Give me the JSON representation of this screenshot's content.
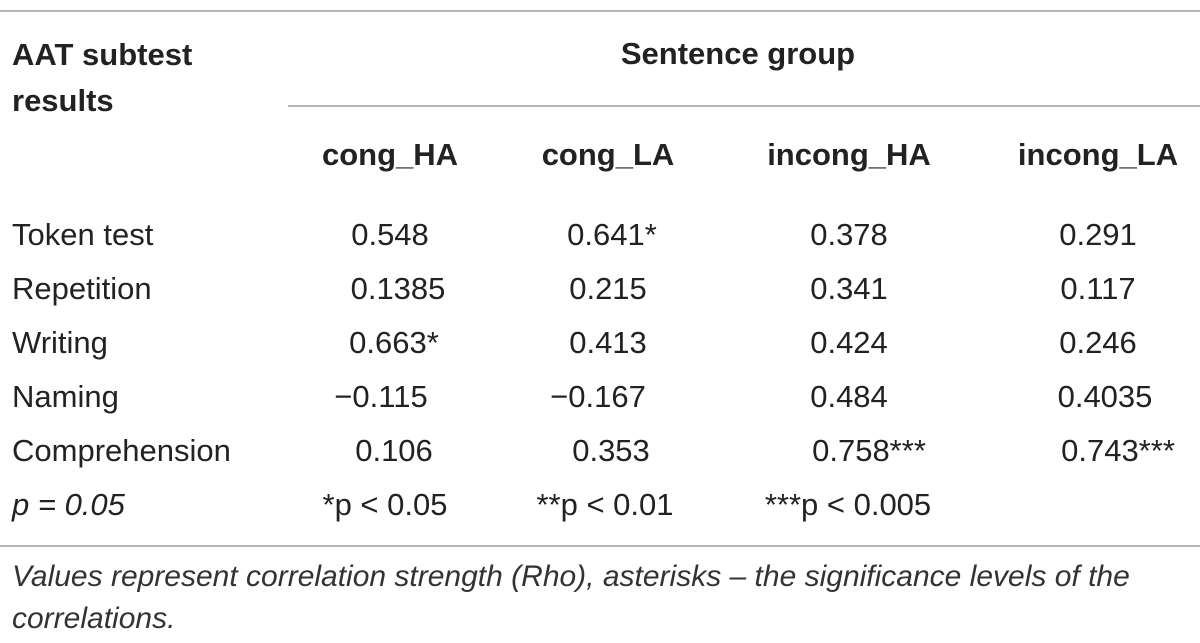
{
  "table": {
    "stub_header_line1": "AAT subtest",
    "stub_header_line2": "results",
    "group_header": "Sentence group",
    "columns": [
      "cong_HA",
      "cong_LA",
      "incong_HA",
      "incong_LA"
    ],
    "rows": [
      {
        "label": "Token test",
        "values": [
          "0.548",
          "0.641*",
          "0.378",
          "0.291"
        ]
      },
      {
        "label": "Repetition",
        "values": [
          "0.1385",
          "0.215",
          "0.341",
          "0.117"
        ]
      },
      {
        "label": "Writing",
        "values": [
          "0.663*",
          "0.413",
          "0.424",
          "0.246"
        ]
      },
      {
        "label": "Naming",
        "values": [
          "−0.115",
          "−0.167",
          "0.484",
          "0.4035"
        ]
      },
      {
        "label": "Comprehension",
        "values": [
          "0.106",
          "0.353",
          "0.758***",
          "0.743***"
        ]
      },
      {
        "label": "p = 0.05",
        "values": [
          "*p < 0.05",
          "**p < 0.01",
          "***p < 0.005",
          ""
        ]
      }
    ]
  },
  "footnote": "Values represent correlation strength (Rho), asterisks – the significance levels of the correlations."
}
